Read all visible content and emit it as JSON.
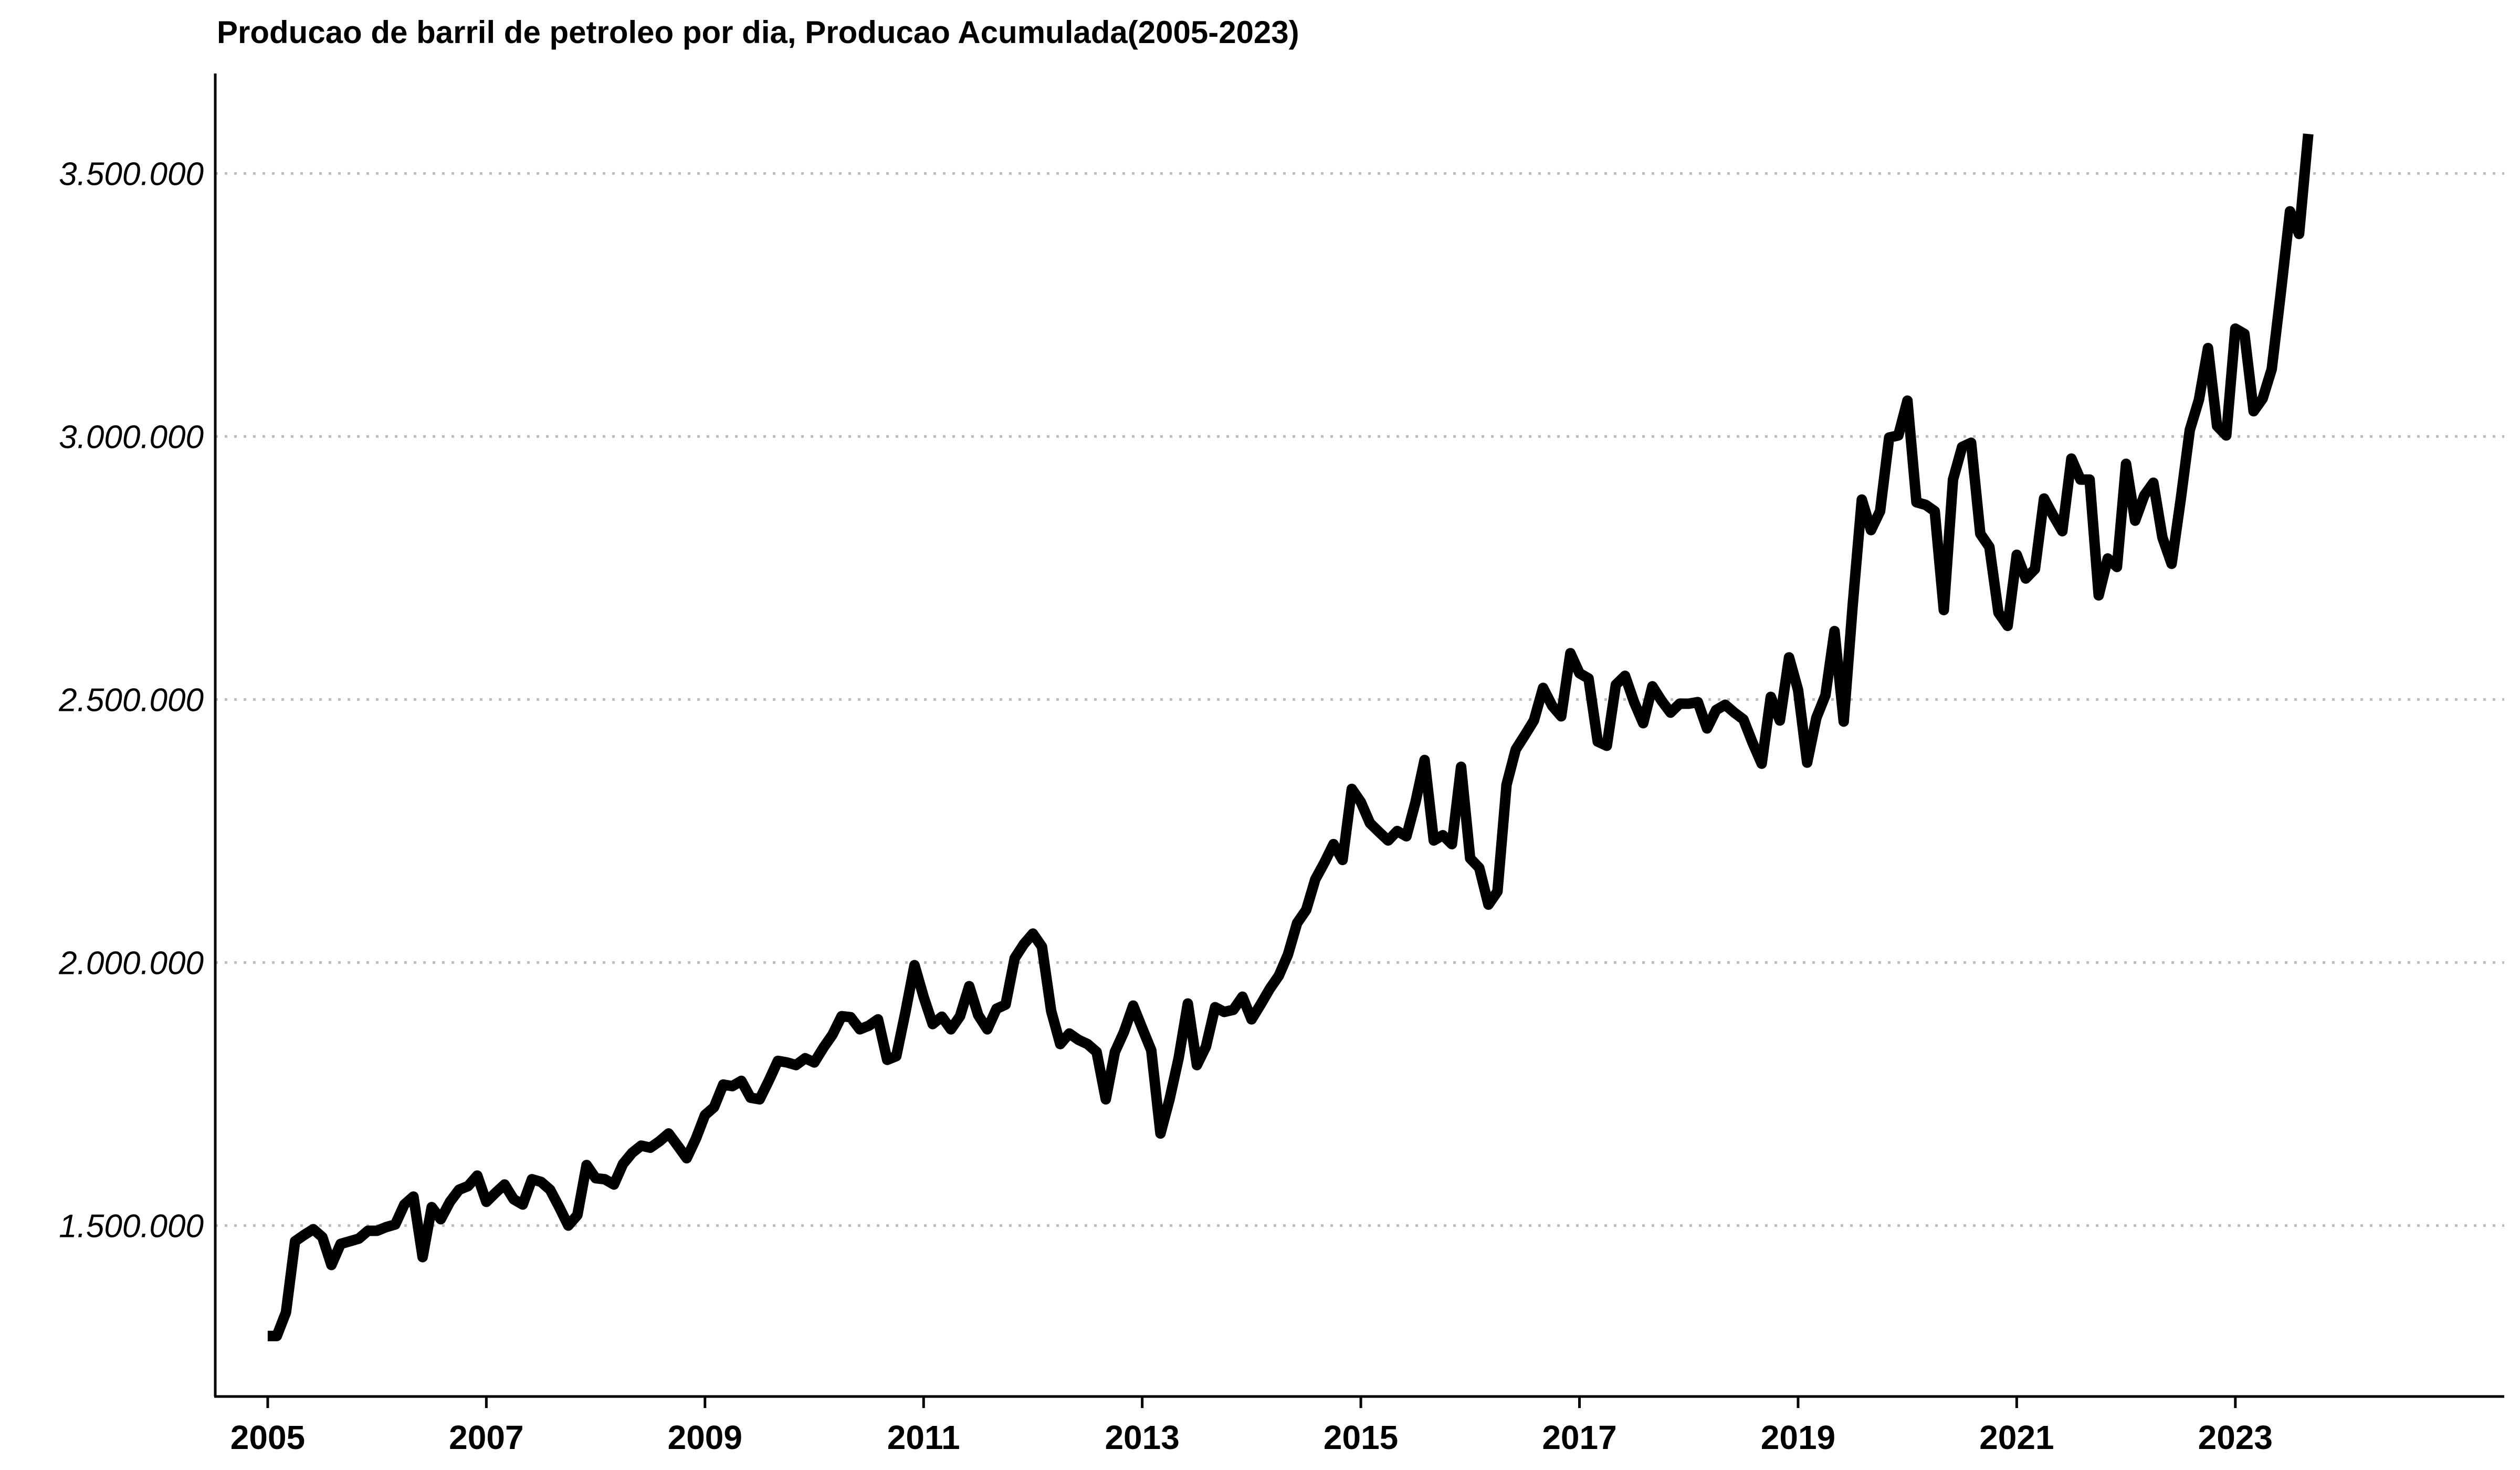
{
  "chart_data": {
    "type": "line",
    "title": "Producao de barril de petroleo por dia, Producao Acumulada(2005-2023)",
    "xlabel": "",
    "ylabel": "",
    "x_ticks": [
      "2005",
      "2007",
      "2009",
      "2011",
      "2013",
      "2015",
      "2017",
      "2019",
      "2021",
      "2023"
    ],
    "y_ticks": [
      "1.500.000",
      "2.000.000",
      "2.500.000",
      "3.000.000",
      "3.500.000"
    ],
    "y_tick_values": [
      1500000,
      2000000,
      2500000,
      3000000,
      3500000
    ],
    "xlim": [
      2004.52,
      2025.46
    ],
    "ylim": [
      1175000,
      3690000
    ],
    "grid": "horizontal-dotted",
    "line_color": "#000000",
    "grid_color": "#bdbdbd",
    "axis_color": "#000000",
    "series": [
      {
        "x": [
          2005.0,
          2005.083,
          2005.167,
          2005.25,
          2005.333,
          2005.417,
          2005.5,
          2005.583,
          2005.667,
          2005.75,
          2005.833,
          2005.917,
          2006.0,
          2006.083,
          2006.167,
          2006.25,
          2006.333,
          2006.417,
          2006.5,
          2006.583,
          2006.667,
          2006.75,
          2006.833,
          2006.917,
          2007.0,
          2007.083,
          2007.167,
          2007.25,
          2007.333,
          2007.417,
          2007.5,
          2007.583,
          2007.667,
          2007.75,
          2007.833,
          2007.917,
          2008.0,
          2008.083,
          2008.167,
          2008.25,
          2008.333,
          2008.417,
          2008.5,
          2008.583,
          2008.667,
          2008.75,
          2008.833,
          2008.917,
          2009.0,
          2009.083,
          2009.167,
          2009.25,
          2009.333,
          2009.417,
          2009.5,
          2009.583,
          2009.667,
          2009.75,
          2009.833,
          2009.917,
          2010.0,
          2010.083,
          2010.167,
          2010.25,
          2010.333,
          2010.417,
          2010.5,
          2010.583,
          2010.667,
          2010.75,
          2010.833,
          2010.917,
          2011.0,
          2011.083,
          2011.167,
          2011.25,
          2011.333,
          2011.417,
          2011.5,
          2011.583,
          2011.667,
          2011.75,
          2011.833,
          2011.917,
          2012.0,
          2012.083,
          2012.167,
          2012.25,
          2012.333,
          2012.417,
          2012.5,
          2012.583,
          2012.667,
          2012.75,
          2012.833,
          2012.917,
          2013.0,
          2013.083,
          2013.167,
          2013.25,
          2013.333,
          2013.417,
          2013.5,
          2013.583,
          2013.667,
          2013.75,
          2013.833,
          2013.917,
          2014.0,
          2014.083,
          2014.167,
          2014.25,
          2014.333,
          2014.417,
          2014.5,
          2014.583,
          2014.667,
          2014.75,
          2014.833,
          2014.917,
          2015.0,
          2015.083,
          2015.167,
          2015.25,
          2015.333,
          2015.417,
          2015.5,
          2015.583,
          2015.667,
          2015.75,
          2015.833,
          2015.917,
          2016.0,
          2016.083,
          2016.167,
          2016.25,
          2016.333,
          2016.417,
          2016.5,
          2016.583,
          2016.667,
          2016.75,
          2016.833,
          2016.917,
          2017.0,
          2017.083,
          2017.167,
          2017.25,
          2017.333,
          2017.417,
          2017.5,
          2017.583,
          2017.667,
          2017.75,
          2017.833,
          2017.917,
          2018.0,
          2018.083,
          2018.167,
          2018.25,
          2018.333,
          2018.417,
          2018.5,
          2018.583,
          2018.667,
          2018.75,
          2018.833,
          2018.917,
          2019.0,
          2019.083,
          2019.167,
          2019.25,
          2019.333,
          2019.417,
          2019.5,
          2019.583,
          2019.667,
          2019.75,
          2019.833,
          2019.917,
          2020.0,
          2020.083,
          2020.167,
          2020.25,
          2020.333,
          2020.417,
          2020.5,
          2020.583,
          2020.667,
          2020.75,
          2020.833,
          2020.917,
          2021.0,
          2021.083,
          2021.167,
          2021.25,
          2021.333,
          2021.417,
          2021.5,
          2021.583,
          2021.667,
          2021.75,
          2021.833,
          2021.917,
          2022.0,
          2022.083,
          2022.167,
          2022.25,
          2022.333,
          2022.417,
          2022.5,
          2022.583,
          2022.667,
          2022.75,
          2022.833,
          2022.917,
          2023.0,
          2023.083,
          2023.167,
          2023.25,
          2023.333,
          2023.417,
          2023.5,
          2023.583,
          2023.667
        ],
        "y": [
          1290000,
          1290000,
          1335000,
          1470000,
          1482000,
          1493000,
          1478000,
          1425000,
          1465000,
          1470000,
          1475000,
          1490000,
          1490000,
          1497000,
          1502000,
          1540000,
          1555000,
          1440000,
          1535000,
          1512000,
          1545000,
          1568000,
          1575000,
          1595000,
          1545000,
          1562000,
          1578000,
          1550000,
          1540000,
          1588000,
          1583000,
          1568000,
          1535000,
          1500000,
          1520000,
          1615000,
          1590000,
          1588000,
          1578000,
          1617000,
          1638000,
          1652000,
          1648000,
          1660000,
          1675000,
          1652000,
          1628000,
          1665000,
          1710000,
          1725000,
          1768000,
          1765000,
          1775000,
          1743000,
          1740000,
          1775000,
          1813000,
          1810000,
          1805000,
          1818000,
          1810000,
          1838000,
          1863000,
          1898000,
          1896000,
          1873000,
          1880000,
          1892000,
          1815000,
          1822000,
          1905000,
          1995000,
          1935000,
          1883000,
          1897000,
          1873000,
          1898000,
          1955000,
          1900000,
          1873000,
          1912000,
          1920000,
          2008000,
          2035000,
          2055000,
          2030000,
          1908000,
          1845000,
          1865000,
          1853000,
          1845000,
          1830000,
          1740000,
          1830000,
          1868000,
          1918000,
          1875000,
          1833000,
          1675000,
          1740000,
          1818000,
          1922000,
          1805000,
          1840000,
          1915000,
          1906000,
          1910000,
          1935000,
          1892000,
          1920000,
          1950000,
          1975000,
          2015000,
          2075000,
          2100000,
          2158000,
          2190000,
          2225000,
          2195000,
          2330000,
          2305000,
          2265000,
          2248000,
          2232000,
          2250000,
          2240000,
          2305000,
          2385000,
          2232000,
          2242000,
          2225000,
          2372000,
          2198000,
          2180000,
          2110000,
          2135000,
          2338000,
          2405000,
          2432000,
          2460000,
          2522000,
          2488000,
          2468000,
          2588000,
          2550000,
          2540000,
          2420000,
          2412000,
          2528000,
          2545000,
          2495000,
          2455000,
          2525000,
          2498000,
          2475000,
          2492000,
          2492000,
          2495000,
          2445000,
          2480000,
          2490000,
          2475000,
          2462000,
          2418000,
          2378000,
          2505000,
          2460000,
          2580000,
          2518000,
          2380000,
          2465000,
          2508000,
          2630000,
          2458000,
          2680000,
          2880000,
          2822000,
          2858000,
          2998000,
          3002000,
          3068000,
          2875000,
          2870000,
          2858000,
          2670000,
          2918000,
          2980000,
          2988000,
          2815000,
          2790000,
          2665000,
          2640000,
          2775000,
          2730000,
          2748000,
          2882000,
          2850000,
          2820000,
          2958000,
          2918000,
          2918000,
          2698000,
          2768000,
          2752000,
          2948000,
          2840000,
          2888000,
          2912000,
          2808000,
          2758000,
          2880000,
          3012000,
          3070000,
          3168000,
          3020000,
          3002000,
          3205000,
          3195000,
          3048000,
          3072000,
          3128000,
          3275000,
          3428000,
          3385000,
          3575000
        ]
      }
    ]
  }
}
